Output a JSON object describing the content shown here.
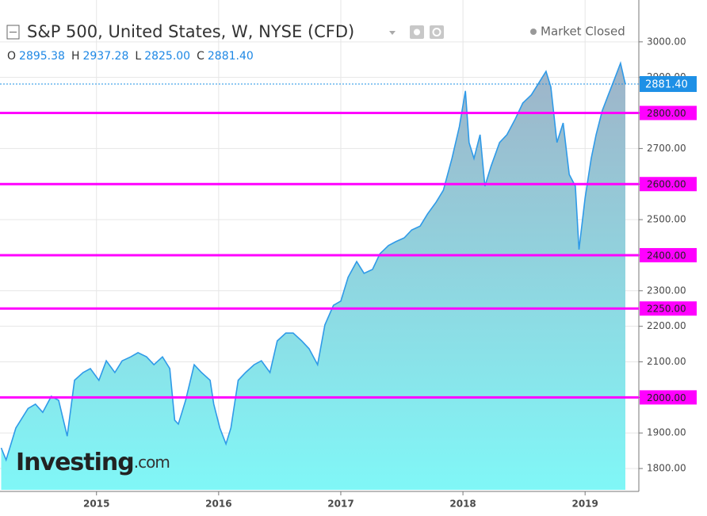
{
  "chart_data": {
    "type": "area",
    "title": "S&P 500, United States, W, NYSE (CFD)",
    "status": "Market Closed",
    "ohlc": [
      {
        "label": "O",
        "value": "2895.38"
      },
      {
        "label": "H",
        "value": "2937.28"
      },
      {
        "label": "L",
        "value": "2825.00"
      },
      {
        "label": "C",
        "value": "2881.40"
      }
    ],
    "brand": "Investing",
    "brand_suffix": ".com",
    "color": "#2f9ae8",
    "x": [
      2014.22,
      2014.26,
      2014.34,
      2014.44,
      2014.5,
      2014.56,
      2014.63,
      2014.69,
      2014.76,
      2014.82,
      2014.89,
      2014.95,
      2015.02,
      2015.08,
      2015.15,
      2015.21,
      2015.28,
      2015.34,
      2015.41,
      2015.47,
      2015.54,
      2015.6,
      2015.64,
      2015.67,
      2015.7,
      2015.73,
      2015.8,
      2015.86,
      2015.93,
      2015.96,
      2016.01,
      2016.06,
      2016.1,
      2016.16,
      2016.22,
      2016.29,
      2016.35,
      2016.42,
      2016.48,
      2016.55,
      2016.61,
      2016.68,
      2016.74,
      2016.81,
      2016.84,
      2016.87,
      2016.94,
      2017.0,
      2017.06,
      2017.13,
      2017.19,
      2017.26,
      2017.32,
      2017.39,
      2017.45,
      2017.52,
      2017.58,
      2017.65,
      2017.71,
      2017.78,
      2017.84,
      2017.91,
      2017.97,
      2018.02,
      2018.05,
      2018.09,
      2018.14,
      2018.18,
      2018.23,
      2018.3,
      2018.36,
      2018.43,
      2018.49,
      2018.56,
      2018.62,
      2018.68,
      2018.72,
      2018.77,
      2018.82,
      2018.87,
      2018.92,
      2018.95,
      2019.0,
      2019.05,
      2019.09,
      2019.14,
      2019.19,
      2019.24,
      2019.29,
      2019.32,
      2019.33
    ],
    "values": [
      1858,
      1824,
      1914,
      1969,
      1981,
      1958,
      2003,
      1992,
      1891,
      2048,
      2070,
      2081,
      2048,
      2103,
      2070,
      2103,
      2114,
      2126,
      2114,
      2092,
      2114,
      2081,
      1936,
      1925,
      1958,
      1992,
      2092,
      2070,
      2048,
      1981,
      1914,
      1869,
      1914,
      2048,
      2070,
      2092,
      2103,
      2070,
      2159,
      2181,
      2181,
      2159,
      2137,
      2092,
      2148,
      2204,
      2259,
      2271,
      2338,
      2382,
      2349,
      2360,
      2404,
      2427,
      2438,
      2449,
      2471,
      2482,
      2516,
      2549,
      2583,
      2672,
      2761,
      2862,
      2717,
      2672,
      2739,
      2594,
      2650,
      2717,
      2739,
      2784,
      2828,
      2851,
      2884,
      2917,
      2873,
      2717,
      2772,
      2627,
      2594,
      2416,
      2561,
      2672,
      2739,
      2806,
      2851,
      2895,
      2940,
      2895,
      2881.4
    ],
    "xlim": [
      2014.21,
      2019.44
    ],
    "xticks": [
      2015,
      2016,
      2017,
      2018,
      2019
    ],
    "ylim": [
      1740,
      3091
    ],
    "yticks": [
      {
        "value": 1800,
        "label": "1800.00"
      },
      {
        "value": 1900,
        "label": "1900.00"
      },
      {
        "value": 2000,
        "label": "2000.00"
      },
      {
        "value": 2100,
        "label": "2100.00"
      },
      {
        "value": 2200,
        "label": "2200.00"
      },
      {
        "value": 2300,
        "label": "2300.00"
      },
      {
        "value": 2400,
        "label": "2400.00"
      },
      {
        "value": 2500,
        "label": "2500.00"
      },
      {
        "value": 2600,
        "label": "2600.00"
      },
      {
        "value": 2700,
        "label": "2700.00"
      },
      {
        "value": 2800,
        "label": "2800.00"
      },
      {
        "value": 2900,
        "label": "2900.00"
      },
      {
        "value": 3000,
        "label": "3000.00"
      }
    ],
    "grid": true,
    "levels": {
      "color": "#ff00ff",
      "values": [
        2800,
        2600,
        2400,
        2250,
        2000
      ],
      "labels": [
        "2800.00",
        "2600.00",
        "2400.00",
        "2250.00",
        "2000.00"
      ]
    },
    "last": {
      "value": 2881.4,
      "label": "2881.40",
      "color": "#1e90e6"
    }
  }
}
